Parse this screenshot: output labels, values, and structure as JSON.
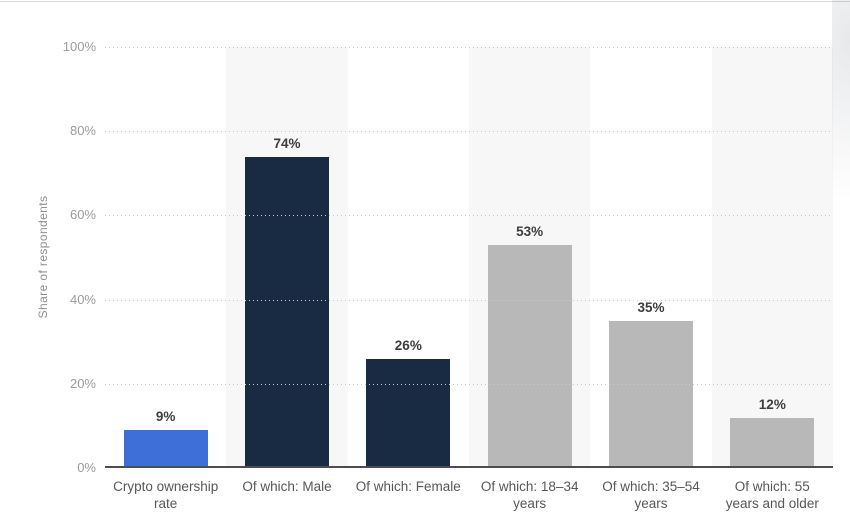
{
  "chart_data": {
    "type": "bar",
    "ylabel": "Share of respondents",
    "ylim": [
      0,
      100
    ],
    "grid": "horizontal-dotted",
    "legend": "none",
    "ytick_labels": [
      "100%",
      "80%",
      "60%",
      "40%",
      "20%",
      "0%"
    ],
    "categories": [
      "Crypto ownership rate",
      "Of which: Male",
      "Of which: Female",
      "Of which: 18–34 years",
      "Of which: 35–54 years",
      "Of which: 55 years and older"
    ],
    "categories_display": [
      "Crypto ownership\nrate",
      "Of which: Male",
      "Of which: Female",
      "Of which: 18–34\nyears",
      "Of which: 35–54\nyears",
      "Of which: 55\nyears and older"
    ],
    "values": [
      9,
      74,
      26,
      53,
      35,
      12
    ],
    "value_labels": [
      "9%",
      "74%",
      "26%",
      "53%",
      "35%",
      "12%"
    ],
    "bar_colors": [
      "#3e6fd8",
      "#182b42",
      "#182b42",
      "#b8b8b8",
      "#b8b8b8",
      "#b8b8b8"
    ],
    "stripe_color": "#f7f7f8",
    "accent_blue": "#3e6fd8",
    "accent_navy": "#182b42",
    "accent_gray": "#b8b8b8"
  }
}
